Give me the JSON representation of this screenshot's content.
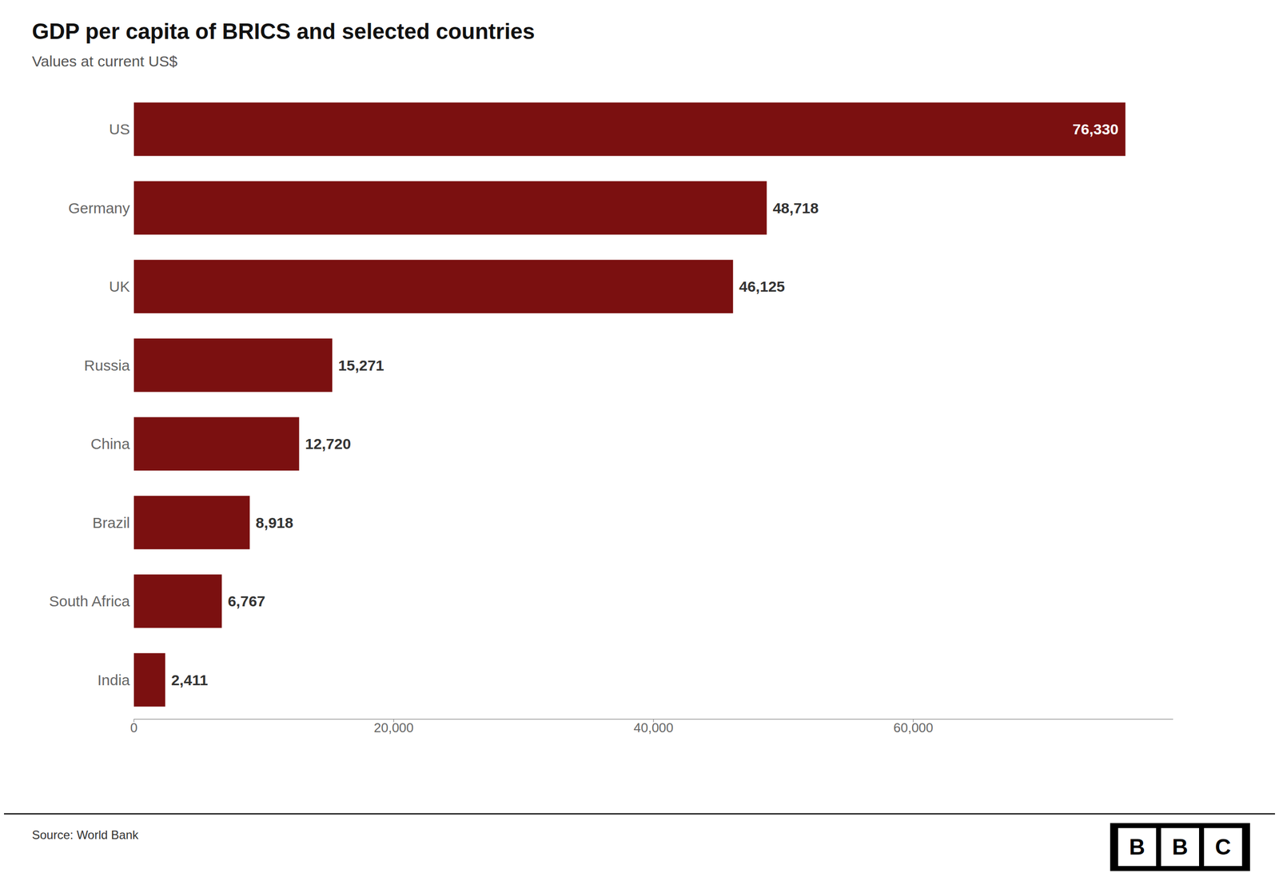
{
  "chart_data": {
    "type": "bar",
    "orientation": "horizontal",
    "title": "GDP per capita of BRICS and selected countries",
    "subtitle": "Values at current US$",
    "annotations": [
      "Source: World Bank",
      "BBC"
    ],
    "categories": [
      "US",
      "Germany",
      "UK",
      "Russia",
      "China",
      "Brazil",
      "South Africa",
      "India"
    ],
    "values": [
      76330,
      48718,
      46125,
      15271,
      12720,
      8918,
      6767,
      2411
    ],
    "value_labels": [
      "76,330",
      "48,718",
      "46,125",
      "15,271",
      "12,720",
      "8,918",
      "6,767",
      "2,411"
    ],
    "data_labels": true,
    "color": "#7B1010",
    "xlim": [
      0,
      80000
    ],
    "xticks": [
      0,
      {
        "value": 20000,
        "label": "20,000"
      },
      {
        "value": 40000,
        "label": "40,000"
      },
      {
        "value": 60000,
        "label": "60,000"
      }
    ],
    "grid": false
  }
}
